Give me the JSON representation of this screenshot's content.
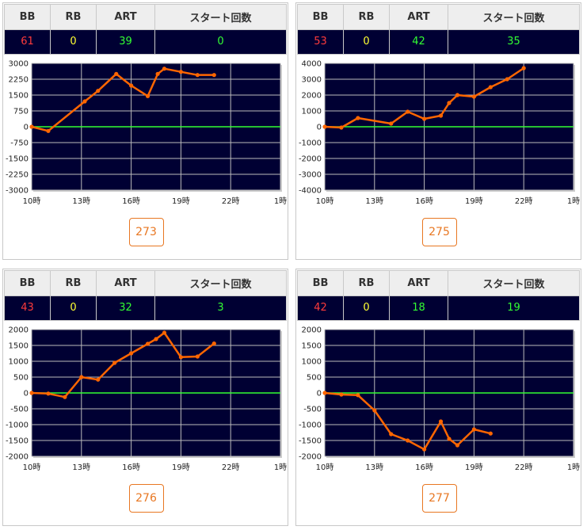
{
  "headers": {
    "bb": "BB",
    "rb": "RB",
    "art": "ART",
    "start": "スタート回数"
  },
  "colors": {
    "plot_bg": "#000033",
    "line": "#ff6600",
    "zero_line": "#33ff33",
    "grid": "#bbbbbb"
  },
  "panels": [
    {
      "stats": {
        "bb": "61",
        "rb": "0",
        "art": "39",
        "start": "0"
      },
      "button_label": "273",
      "chart_data": {
        "type": "line",
        "xlabel": "",
        "ylabel": "",
        "x_ticks": [
          "10時",
          "13時",
          "16時",
          "19時",
          "22時",
          "1時"
        ],
        "xlim": [
          10,
          25
        ],
        "ylim": [
          -3000,
          3000
        ],
        "y_ticks": [
          3000,
          2250,
          1500,
          750,
          0,
          -750,
          -1500,
          -2250,
          -3000
        ],
        "x": [
          10.0,
          11.0,
          13.2,
          14.0,
          15.1,
          16.0,
          17.0,
          17.6,
          18.0,
          19.0,
          20.0,
          21.0
        ],
        "values": [
          0,
          -200,
          1200,
          1700,
          2500,
          1950,
          1450,
          2500,
          2750,
          2600,
          2450,
          2450
        ]
      }
    },
    {
      "stats": {
        "bb": "53",
        "rb": "0",
        "art": "42",
        "start": "35"
      },
      "button_label": "275",
      "chart_data": {
        "type": "line",
        "xlabel": "",
        "ylabel": "",
        "x_ticks": [
          "10時",
          "13時",
          "16時",
          "19時",
          "22時",
          "1時"
        ],
        "xlim": [
          10,
          25
        ],
        "ylim": [
          -4000,
          4000
        ],
        "y_ticks": [
          4000,
          3000,
          2000,
          1000,
          0,
          -1000,
          -2000,
          -3000,
          -4000
        ],
        "x": [
          10.0,
          11.0,
          12.0,
          14.0,
          15.0,
          16.0,
          17.0,
          17.5,
          18.0,
          19.0,
          20.0,
          21.0,
          22.0
        ],
        "values": [
          0,
          -50,
          550,
          200,
          950,
          500,
          700,
          1500,
          2000,
          1900,
          2500,
          3000,
          3700
        ]
      }
    },
    {
      "stats": {
        "bb": "43",
        "rb": "0",
        "art": "32",
        "start": "3"
      },
      "button_label": "276",
      "chart_data": {
        "type": "line",
        "xlabel": "",
        "ylabel": "",
        "x_ticks": [
          "10時",
          "13時",
          "16時",
          "19時",
          "22時",
          "1時"
        ],
        "xlim": [
          10,
          25
        ],
        "ylim": [
          -2000,
          2000
        ],
        "y_ticks": [
          2000,
          1500,
          1000,
          500,
          0,
          -500,
          -1000,
          -1500,
          -2000
        ],
        "x": [
          10.0,
          11.0,
          12.0,
          13.0,
          14.0,
          15.0,
          16.0,
          17.0,
          17.5,
          18.0,
          19.0,
          20.0,
          21.0
        ],
        "values": [
          0,
          -20,
          -130,
          500,
          420,
          950,
          1250,
          1550,
          1700,
          1900,
          1130,
          1150,
          1560
        ]
      }
    },
    {
      "stats": {
        "bb": "42",
        "rb": "0",
        "art": "18",
        "start": "19"
      },
      "button_label": "277",
      "chart_data": {
        "type": "line",
        "xlabel": "",
        "ylabel": "",
        "x_ticks": [
          "10時",
          "13時",
          "16時",
          "19時",
          "22時",
          "1時"
        ],
        "xlim": [
          10,
          25
        ],
        "ylim": [
          -2000,
          2000
        ],
        "y_ticks": [
          2000,
          1500,
          1000,
          500,
          0,
          -500,
          -1000,
          -1500,
          -2000
        ],
        "x": [
          10.0,
          11.0,
          12.0,
          13.0,
          14.0,
          15.0,
          16.0,
          17.0,
          17.5,
          18.0,
          19.0,
          20.0
        ],
        "values": [
          0,
          -50,
          -70,
          -550,
          -1300,
          -1500,
          -1780,
          -900,
          -1450,
          -1650,
          -1150,
          -1280
        ]
      }
    }
  ]
}
